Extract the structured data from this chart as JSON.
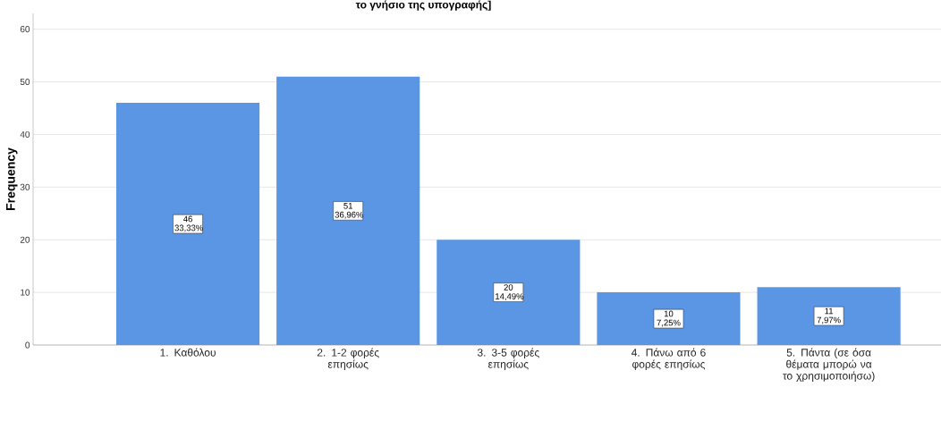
{
  "chart_data": {
    "type": "bar",
    "title": "το γνήσιο της υπογραφής]",
    "ylabel": "Frequency",
    "categories": [
      "1. Καθόλου",
      "2. 1-2 φορές επησίως",
      "3. 3-5 φορές επησίως",
      "4. Πάνω από 6 φορές επησίως",
      "5. Πάντα (σε όσα θέματα  μπορώ να το χρησιμοποιήσω)"
    ],
    "values": [
      46,
      51,
      20,
      10,
      11
    ],
    "value_labels": [
      "46 33,33%",
      "51 36,96%",
      "20 14,49%",
      "10 7,25%",
      "11 7,97%"
    ],
    "color": "#5a96e3",
    "ylim": [
      0,
      63
    ],
    "yticks": [
      0,
      10,
      20,
      30,
      40,
      50,
      60
    ],
    "grid": "y"
  }
}
